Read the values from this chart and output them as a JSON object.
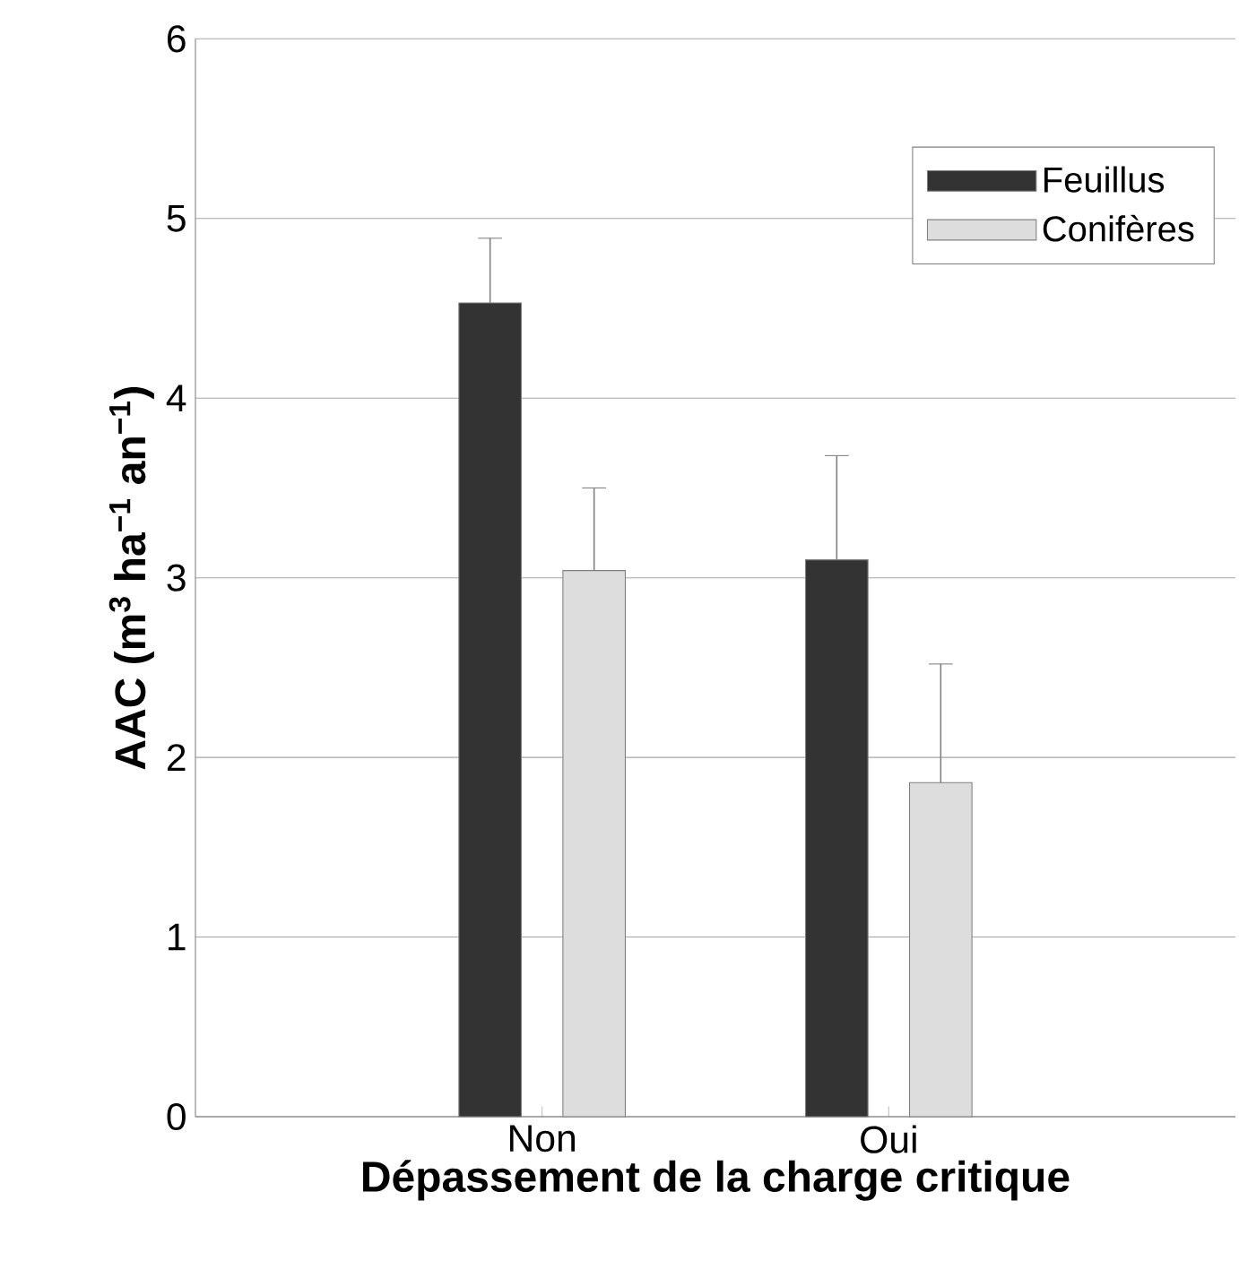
{
  "chart_data": {
    "type": "bar",
    "xlabel": "Dépassement de la charge critique",
    "ylabel": "AAC (m$^{3}$ ha$^{−1}$ an$^{−1}$)",
    "categories": [
      "Non",
      "Oui"
    ],
    "series": [
      {
        "name": "Feuillus",
        "color": "#333333",
        "values": [
          4.53,
          3.1
        ],
        "errors": [
          [
            4.53,
            4.89
          ],
          [
            3.1,
            3.68
          ]
        ]
      },
      {
        "name": "Conifères",
        "color": "#dddddd",
        "values": [
          3.04,
          1.86
        ],
        "errors": [
          [
            3.04,
            3.5
          ],
          [
            1.86,
            2.52
          ]
        ]
      }
    ],
    "ylim": [
      0,
      6
    ],
    "yticks": [
      0,
      1,
      2,
      3,
      4,
      5,
      6
    ],
    "grid": "y",
    "legend": "top right"
  }
}
